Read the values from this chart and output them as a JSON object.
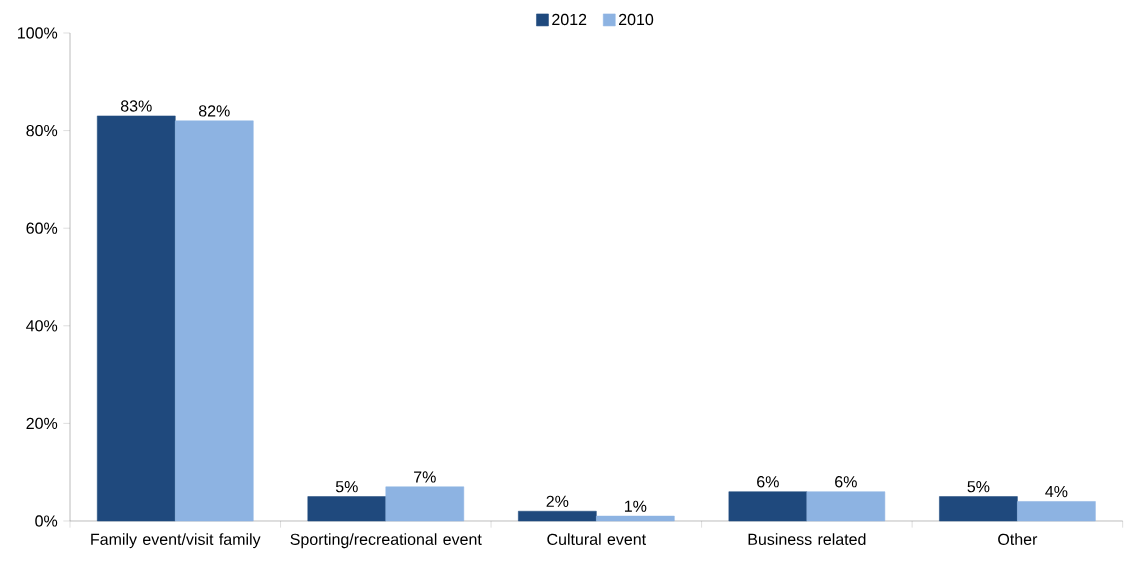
{
  "chart_data": {
    "type": "bar",
    "categories": [
      "Family event/visit family",
      "Sporting/recreational event",
      "Cultural event",
      "Business related",
      "Other"
    ],
    "series": [
      {
        "name": "2012",
        "color": "#1f497d",
        "values": [
          83,
          5,
          2,
          6,
          5
        ],
        "value_labels": [
          "83%",
          "5%",
          "2%",
          "6%",
          "5%"
        ]
      },
      {
        "name": "2010",
        "color": "#8db3e2",
        "values": [
          82,
          7,
          1,
          6,
          4
        ],
        "value_labels": [
          "82%",
          "7%",
          "1%",
          "6%",
          "4%"
        ]
      }
    ],
    "ylim": [
      0,
      100
    ],
    "yticks": [
      {
        "value": 0,
        "label": "0%"
      },
      {
        "value": 20,
        "label": "20%"
      },
      {
        "value": 40,
        "label": "40%"
      },
      {
        "value": 60,
        "label": "60%"
      },
      {
        "value": 80,
        "label": "80%"
      },
      {
        "value": 100,
        "label": "100%"
      }
    ],
    "grid": false,
    "legend": "top"
  }
}
